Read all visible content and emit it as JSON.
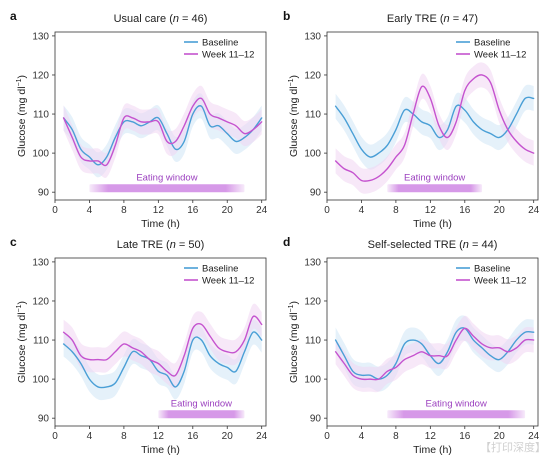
{
  "figure": {
    "colors": {
      "baseline": "#4a9fd6",
      "week": "#c553cf",
      "baseline_band": "#cfe5f5",
      "week_band": "#f0d6f3",
      "eating_window": "#c977e0"
    },
    "legend": {
      "baseline": "Baseline",
      "week": "Week 11–12"
    },
    "eating_window_label": "Eating window",
    "xlabel": "Time (h)",
    "ylabel_main": "Glucose (mg dl",
    "ylabel_sup": "−1",
    "ylabel_end": ")",
    "x_ticks": [
      "0",
      "4",
      "8",
      "12",
      "16",
      "20",
      "24"
    ],
    "y_ticks": [
      "90",
      "100",
      "110",
      "120",
      "130"
    ],
    "watermark": "【打印深度】"
  },
  "chart_data": [
    {
      "letter": "a",
      "type": "line",
      "title_pre": "Usual care (",
      "title_n": "n",
      "title_post": " = 46)",
      "xlim": [
        0,
        24.5
      ],
      "ylim": [
        88,
        131
      ],
      "grid": false,
      "legend_position": "top-right",
      "eating_window": [
        4,
        22
      ],
      "x": [
        1,
        2,
        3,
        4,
        5,
        6,
        7,
        8,
        9,
        10,
        11,
        12,
        13,
        14,
        15,
        16,
        17,
        18,
        19,
        20,
        21,
        22,
        23,
        24
      ],
      "series": [
        {
          "name": "Baseline",
          "values": [
            109,
            106,
            101,
            99,
            97,
            99,
            104,
            108,
            108,
            107,
            108,
            109,
            105,
            101,
            103,
            110,
            112,
            107,
            107,
            105,
            103,
            104,
            106,
            109
          ]
        },
        {
          "name": "Week 11–12",
          "values": [
            109,
            104,
            99,
            98,
            98,
            97,
            102,
            109,
            109,
            108,
            108,
            108,
            103,
            103,
            107,
            112,
            114,
            110,
            109,
            108,
            107,
            105,
            106,
            108
          ]
        }
      ]
    },
    {
      "letter": "b",
      "type": "line",
      "title_pre": "Early TRE (",
      "title_n": "n",
      "title_post": " = 47)",
      "xlim": [
        0,
        24.5
      ],
      "ylim": [
        88,
        131
      ],
      "grid": false,
      "legend_position": "top-right",
      "eating_window": [
        7,
        18
      ],
      "x": [
        1,
        2,
        3,
        4,
        5,
        6,
        7,
        8,
        9,
        10,
        11,
        12,
        13,
        14,
        15,
        16,
        17,
        18,
        19,
        20,
        21,
        22,
        23,
        24
      ],
      "series": [
        {
          "name": "Baseline",
          "values": [
            112,
            109,
            105,
            101,
            99,
            100,
            102,
            106,
            111,
            110,
            108,
            107,
            104,
            106,
            112,
            111,
            108,
            106,
            105,
            104,
            106,
            110,
            114,
            114
          ]
        },
        {
          "name": "Week 11–12",
          "values": [
            98,
            96,
            95,
            93,
            93,
            94,
            96,
            99,
            102,
            110,
            117,
            114,
            107,
            104,
            108,
            116,
            119,
            120,
            118,
            111,
            106,
            103,
            101,
            100
          ]
        }
      ]
    },
    {
      "letter": "c",
      "type": "line",
      "title_pre": "Late TRE (",
      "title_n": "n",
      "title_post": " = 50)",
      "xlim": [
        0,
        24.5
      ],
      "ylim": [
        88,
        131
      ],
      "grid": false,
      "legend_position": "top-right",
      "eating_window": [
        12,
        22
      ],
      "x": [
        1,
        2,
        3,
        4,
        5,
        6,
        7,
        8,
        9,
        10,
        11,
        12,
        13,
        14,
        15,
        16,
        17,
        18,
        19,
        20,
        21,
        22,
        23,
        24
      ],
      "series": [
        {
          "name": "Baseline",
          "values": [
            109,
            107,
            104,
            100,
            98,
            98,
            99,
            103,
            107,
            106,
            105,
            102,
            101,
            98,
            102,
            110,
            110,
            106,
            104,
            103,
            102,
            107,
            112,
            110
          ]
        },
        {
          "name": "Week 11–12",
          "values": [
            112,
            110,
            106,
            105,
            105,
            105,
            107,
            109,
            108,
            107,
            105,
            104,
            102,
            101,
            106,
            113,
            114,
            111,
            108,
            107,
            107,
            110,
            116,
            114
          ]
        }
      ]
    },
    {
      "letter": "d",
      "type": "line",
      "title_pre": "Self-selected TRE (",
      "title_n": "n",
      "title_post": " = 44)",
      "xlim": [
        0,
        24.5
      ],
      "ylim": [
        88,
        131
      ],
      "grid": false,
      "legend_position": "top-right",
      "eating_window": [
        7,
        23
      ],
      "x": [
        1,
        2,
        3,
        4,
        5,
        6,
        7,
        8,
        9,
        10,
        11,
        12,
        13,
        14,
        15,
        16,
        17,
        18,
        19,
        20,
        21,
        22,
        23,
        24
      ],
      "series": [
        {
          "name": "Baseline",
          "values": [
            110,
            106,
            102,
            101,
            101,
            100,
            101,
            104,
            109,
            110,
            109,
            106,
            104,
            107,
            112,
            113,
            110,
            108,
            106,
            105,
            107,
            110,
            112,
            112
          ]
        },
        {
          "name": "Week 11–12",
          "values": [
            107,
            104,
            101,
            100,
            100,
            100,
            102,
            103,
            105,
            106,
            107,
            106,
            106,
            106,
            110,
            113,
            111,
            109,
            108,
            108,
            107,
            108,
            110,
            110
          ]
        }
      ]
    }
  ]
}
